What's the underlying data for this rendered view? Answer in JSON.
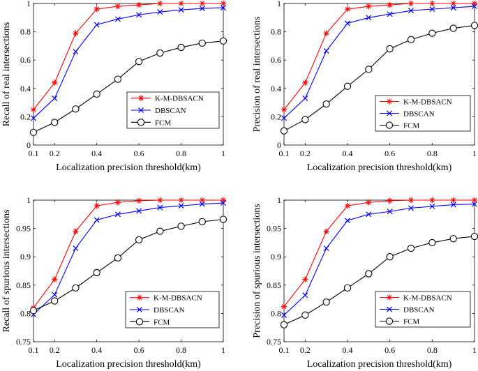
{
  "chart_data": [
    {
      "type": "line",
      "xlabel": "Localization precision threshold(km)",
      "ylabel": "Recall of real intersections",
      "xlim": [
        0.1,
        1
      ],
      "ylim": [
        0,
        1
      ],
      "xticks": [
        0.1,
        0.2,
        0.4,
        0.6,
        0.8,
        1
      ],
      "xtick_labels": [
        "0.1",
        "0.2",
        "0.4",
        "0.6",
        "0.8",
        "1"
      ],
      "yticks": [
        0,
        0.2,
        0.4,
        0.6,
        0.8,
        1
      ],
      "ytick_labels": [
        "0",
        "0.2",
        "0.4",
        "0.6",
        "0.8",
        "1"
      ],
      "legend_position": "lower-right",
      "x": [
        0.1,
        0.2,
        0.3,
        0.4,
        0.5,
        0.6,
        0.7,
        0.8,
        0.9,
        1.0
      ],
      "series": [
        {
          "name": "K-M-DBSACN",
          "color": "#ff0000",
          "marker": "asterisk",
          "values": [
            0.25,
            0.44,
            0.79,
            0.96,
            0.98,
            0.99,
            1.0,
            1.0,
            1.0,
            1.0
          ]
        },
        {
          "name": "DBSCAN",
          "color": "#0000ff",
          "marker": "x",
          "values": [
            0.19,
            0.33,
            0.66,
            0.85,
            0.89,
            0.92,
            0.94,
            0.955,
            0.965,
            0.97
          ]
        },
        {
          "name": "FCM",
          "color": "#000000",
          "marker": "circle",
          "values": [
            0.09,
            0.16,
            0.255,
            0.36,
            0.465,
            0.59,
            0.65,
            0.69,
            0.72,
            0.735
          ]
        }
      ]
    },
    {
      "type": "line",
      "xlabel": "Localization precision threshold(km)",
      "ylabel": "Precision of real intersections",
      "xlim": [
        0.1,
        1
      ],
      "ylim": [
        0,
        1
      ],
      "xticks": [
        0.1,
        0.2,
        0.4,
        0.6,
        0.8,
        1
      ],
      "xtick_labels": [
        "0.1",
        "0.2",
        "0.4",
        "0.6",
        "0.8",
        "1"
      ],
      "yticks": [
        0,
        0.2,
        0.4,
        0.6,
        0.8,
        1
      ],
      "ytick_labels": [
        "0",
        "0.2",
        "0.4",
        "0.6",
        "0.8",
        "1"
      ],
      "legend_position": "lower-right",
      "x": [
        0.1,
        0.2,
        0.3,
        0.4,
        0.5,
        0.6,
        0.7,
        0.8,
        0.9,
        1.0
      ],
      "series": [
        {
          "name": "K-M-DBSACN",
          "color": "#ff0000",
          "marker": "asterisk",
          "values": [
            0.25,
            0.44,
            0.79,
            0.96,
            0.98,
            0.99,
            1.0,
            1.0,
            1.0,
            1.0
          ]
        },
        {
          "name": "DBSCAN",
          "color": "#0000ff",
          "marker": "x",
          "values": [
            0.19,
            0.33,
            0.665,
            0.86,
            0.9,
            0.925,
            0.95,
            0.96,
            0.97,
            0.98
          ]
        },
        {
          "name": "FCM",
          "color": "#000000",
          "marker": "circle",
          "values": [
            0.1,
            0.18,
            0.29,
            0.415,
            0.535,
            0.68,
            0.745,
            0.79,
            0.825,
            0.845
          ]
        }
      ]
    },
    {
      "type": "line",
      "xlabel": "Localization precision threshold(km)",
      "ylabel": "Recall of spurious intersections",
      "xlim": [
        0.1,
        1
      ],
      "ylim": [
        0.75,
        1
      ],
      "xticks": [
        0.1,
        0.2,
        0.4,
        0.6,
        0.8,
        1
      ],
      "xtick_labels": [
        "0.1",
        "0.2",
        "0.4",
        "0.6",
        "0.8",
        "1"
      ],
      "yticks": [
        0.75,
        0.8,
        0.85,
        0.9,
        0.95,
        1
      ],
      "ytick_labels": [
        "0.75",
        "0.8",
        "0.85",
        "0.9",
        "0.95",
        "1"
      ],
      "legend_position": "lower-right",
      "x": [
        0.1,
        0.2,
        0.3,
        0.4,
        0.5,
        0.6,
        0.7,
        0.8,
        0.9,
        1.0
      ],
      "series": [
        {
          "name": "K-M-DBSACN",
          "color": "#ff0000",
          "marker": "asterisk",
          "values": [
            0.81,
            0.86,
            0.945,
            0.99,
            0.996,
            0.999,
            1.0,
            1.0,
            1.0,
            1.0
          ]
        },
        {
          "name": "DBSCAN",
          "color": "#0000ff",
          "marker": "x",
          "values": [
            0.798,
            0.833,
            0.915,
            0.965,
            0.975,
            0.981,
            0.987,
            0.99,
            0.993,
            0.995
          ]
        },
        {
          "name": "FCM",
          "color": "#000000",
          "marker": "circle",
          "values": [
            0.805,
            0.822,
            0.845,
            0.872,
            0.898,
            0.93,
            0.945,
            0.954,
            0.962,
            0.966
          ]
        }
      ]
    },
    {
      "type": "line",
      "xlabel": "Localization precision threshold(km)",
      "ylabel": "Precision of spurious intersections",
      "xlim": [
        0.1,
        1
      ],
      "ylim": [
        0.75,
        1
      ],
      "xticks": [
        0.1,
        0.2,
        0.4,
        0.6,
        0.8,
        1
      ],
      "xtick_labels": [
        "0.1",
        "0.2",
        "0.4",
        "0.6",
        "0.8",
        "1"
      ],
      "yticks": [
        0.75,
        0.8,
        0.85,
        0.9,
        0.95,
        1
      ],
      "ytick_labels": [
        "0.75",
        "0.8",
        "0.85",
        "0.9",
        "0.95",
        "1"
      ],
      "legend_position": "lower-right",
      "x": [
        0.1,
        0.2,
        0.3,
        0.4,
        0.5,
        0.6,
        0.7,
        0.8,
        0.9,
        1.0
      ],
      "series": [
        {
          "name": "K-M-DBSACN",
          "color": "#ff0000",
          "marker": "asterisk",
          "values": [
            0.812,
            0.86,
            0.945,
            0.99,
            0.996,
            0.999,
            1.0,
            1.0,
            1.0,
            1.0
          ]
        },
        {
          "name": "DBSCAN",
          "color": "#0000ff",
          "marker": "x",
          "values": [
            0.797,
            0.832,
            0.915,
            0.964,
            0.975,
            0.98,
            0.986,
            0.989,
            0.992,
            0.993
          ]
        },
        {
          "name": "FCM",
          "color": "#000000",
          "marker": "circle",
          "values": [
            0.78,
            0.797,
            0.82,
            0.845,
            0.87,
            0.9,
            0.915,
            0.925,
            0.932,
            0.936
          ]
        }
      ]
    }
  ]
}
